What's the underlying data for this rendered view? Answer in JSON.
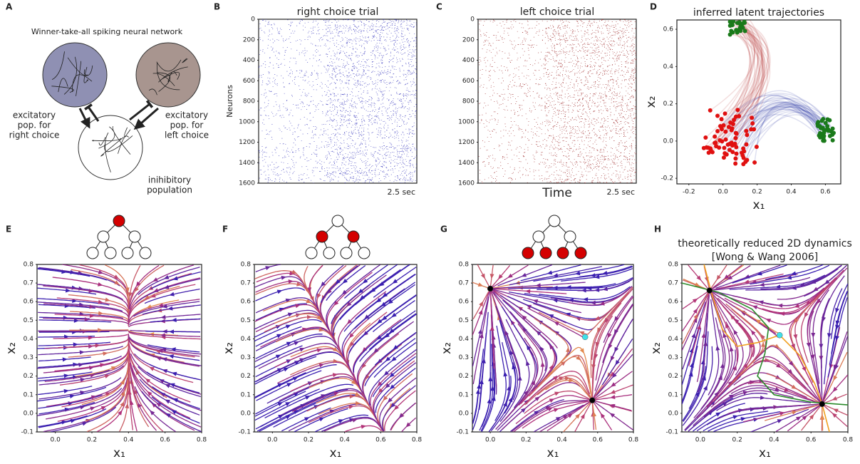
{
  "panels": [
    {
      "label": "A",
      "title": "Winner-take-all spiking neural network",
      "right_label": [
        "excitatory",
        "pop. for",
        "right choice"
      ],
      "left_label": [
        "excitatory",
        "pop. for",
        "left choice"
      ],
      "inhibitory_label": [
        "inihibitory",
        "population"
      ],
      "right_color": "#8f90b3",
      "left_color": "#a8958f"
    },
    {
      "label": "B",
      "title": "right choice trial",
      "ylabel": "Neurons",
      "xlabel_end": "2.5 sec",
      "ylim": [
        1600,
        0
      ],
      "yticks": [
        0,
        200,
        400,
        600,
        800,
        1000,
        1200,
        1400,
        1600
      ],
      "color": "#2a2ab8"
    },
    {
      "label": "C",
      "title": "left choice trial",
      "xlabel": "Time",
      "xlabel_end": "2.5 sec",
      "ylim": [
        1600,
        0
      ],
      "yticks": [
        0,
        200,
        400,
        600,
        800,
        1000,
        1200,
        1400,
        1600
      ],
      "color": "#9a2020"
    },
    {
      "label": "D",
      "title": "inferred latent trajectories",
      "xlabel": "x₁",
      "ylabel": "x₂",
      "xlim": [
        -0.27,
        0.69
      ],
      "ylim": [
        -0.23,
        0.65
      ],
      "xticks": [
        -0.2,
        {
          "value": 0,
          "label": "0.0"
        },
        0.2,
        0.4,
        0.6
      ],
      "yticks": [
        -0.2,
        {
          "value": 0,
          "label": "0.0"
        },
        0.2,
        0.4,
        0.6
      ]
    },
    {
      "label": "E",
      "xlabel": "x₁",
      "ylabel": "x₂",
      "highlight_level": 0,
      "xlim": [
        -0.1,
        0.8
      ],
      "ylim": [
        -0.1,
        0.8
      ],
      "xticks": [
        {
          "value": 0,
          "label": "0.0"
        },
        0.2,
        0.4,
        0.6,
        0.8
      ],
      "yticks": [
        -0.1,
        {
          "value": 0,
          "label": "0.0"
        },
        0.1,
        0.2,
        0.3,
        0.4,
        0.5,
        0.6,
        0.7,
        0.8
      ]
    },
    {
      "label": "F",
      "xlabel": "x₁",
      "ylabel": "x₂",
      "highlight_level": 1,
      "xlim": [
        -0.1,
        0.8
      ],
      "ylim": [
        -0.1,
        0.8
      ],
      "xticks": [
        {
          "value": 0,
          "label": "0.0"
        },
        0.2,
        0.4,
        0.6,
        0.8
      ],
      "yticks": [
        -0.1,
        {
          "value": 0,
          "label": "0.0"
        },
        0.1,
        0.2,
        0.3,
        0.4,
        0.5,
        0.6,
        0.7,
        0.8
      ]
    },
    {
      "label": "G",
      "xlabel": "x₁",
      "ylabel": "x₂",
      "highlight_level": 2,
      "xlim": [
        -0.1,
        0.8
      ],
      "ylim": [
        -0.1,
        0.8
      ],
      "xticks": [
        {
          "value": 0,
          "label": "0.0"
        },
        0.2,
        0.4,
        0.6,
        0.8
      ],
      "yticks": [
        -0.1,
        {
          "value": 0,
          "label": "0.0"
        },
        0.1,
        0.2,
        0.3,
        0.4,
        0.5,
        0.6,
        0.7,
        0.8
      ],
      "fixed_points": [
        {
          "x": 0.0,
          "y": 0.67,
          "color": "#000000"
        },
        {
          "x": 0.53,
          "y": 0.41,
          "color": "#40e0e8"
        },
        {
          "x": 0.57,
          "y": 0.07,
          "color": "#000000"
        }
      ]
    },
    {
      "label": "H",
      "title_lines": [
        "theoretically reduced 2D dynamics",
        "[Wong & Wang 2006]"
      ],
      "xlabel": "x₁",
      "ylabel": "x₂",
      "xlim": [
        -0.1,
        0.8
      ],
      "ylim": [
        -0.1,
        0.8
      ],
      "xticks": [
        {
          "value": 0,
          "label": "0.0"
        },
        0.2,
        0.4,
        0.6,
        0.8
      ],
      "yticks": [
        -0.1,
        {
          "value": 0,
          "label": "0.0"
        },
        0.1,
        0.2,
        0.3,
        0.4,
        0.5,
        0.6,
        0.7,
        0.8
      ],
      "fixed_points": [
        {
          "x": 0.05,
          "y": 0.66,
          "color": "#000000"
        },
        {
          "x": 0.43,
          "y": 0.42,
          "color": "#40e0e8"
        },
        {
          "x": 0.66,
          "y": 0.05,
          "color": "#000000"
        }
      ]
    }
  ]
}
